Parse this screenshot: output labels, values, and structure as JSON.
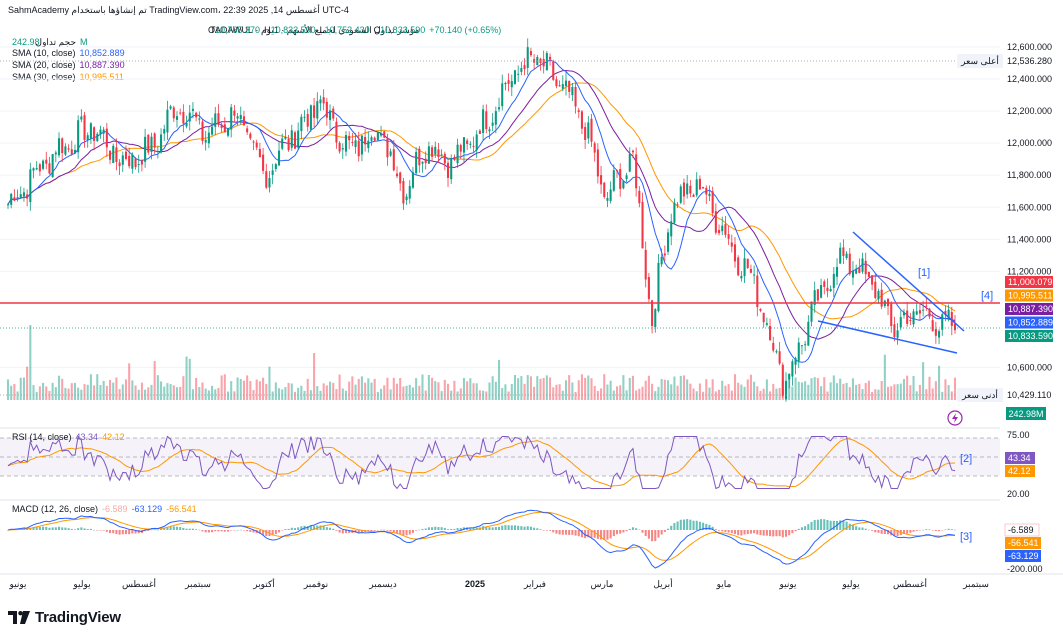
{
  "header": {
    "title_line": "SahmAcademy تم إنشاؤها باستخدام TradingView.com، أغسطس 14, 2025 22:39 UTC-4",
    "symbol_line": "مؤشر تداول السعودي لجميع الأسهم · 1يوم · TADAWUL",
    "ohlc": {
      "o_label": "O",
      "o": "10,765.370",
      "h_label": "H",
      "h": "10,833.590",
      "l_label": "L",
      "l": "10,752.430",
      "c_label": "C",
      "c": "10,833.590",
      "change": "+70.140 (+0.65%)"
    },
    "volume_label": "حجم تداول",
    "volume_value": "242.98M",
    "sma": [
      {
        "label": "SMA (10, close)",
        "value": "10,852.889",
        "color": "#2962ff"
      },
      {
        "label": "SMA (20, close)",
        "value": "10,887.390",
        "color": "#7b1fa2"
      },
      {
        "label": "SMA (30, close)",
        "value": "10,995.511",
        "color": "#ff9800"
      }
    ]
  },
  "price_axis": {
    "ticks": [
      "12,600.000",
      "12,400.000",
      "12,200.000",
      "12,000.000",
      "11,800.000",
      "11,600.000",
      "11,400.000",
      "11,200.000",
      "10,600.000"
    ],
    "high_label": "أعلى سعر",
    "high_value": "12,536.280",
    "low_label": "أدنى سعر",
    "low_value": "10,429.110",
    "badges": [
      {
        "value": "11,000.079",
        "bg": "#f23645"
      },
      {
        "value": "10,995.511",
        "bg": "#ff9800"
      },
      {
        "value": "10,887.390",
        "bg": "#7b1fa2"
      },
      {
        "value": "10,852.889",
        "bg": "#2962ff"
      },
      {
        "value": "10,833.590",
        "bg": "#089981"
      }
    ],
    "volume_badge": "242.98M"
  },
  "annotations": [
    "[1]",
    "[2]",
    "[3]",
    "[4]"
  ],
  "rsi": {
    "label": "RSI (14, close)",
    "value1": "43.34",
    "value2": "42.12",
    "axis": [
      "75.00",
      "20.00"
    ],
    "badge1": "43.34",
    "badge2": "42.12"
  },
  "macd": {
    "label": "MACD (12, 26, close)",
    "macd_value": "-63.129",
    "signal_value": "-56.541",
    "hist_value": "-6.589",
    "axis": "-200.000",
    "badges": [
      "-6.589",
      "-56.541",
      "-63.129"
    ]
  },
  "time_axis": [
    "يونيو",
    "يوليو",
    "أغسطس",
    "سبتمبر",
    "أكتوبر",
    "نوفمبر",
    "ديسمبر",
    "2025",
    "فبراير",
    "مارس",
    "أبريل",
    "مايو",
    "يونيو",
    "يوليو",
    "أغسطس",
    "سبتمبر"
  ],
  "logo_text": "TradingView",
  "colors": {
    "up": "#089981",
    "down": "#f23645",
    "sma10": "#2962ff",
    "sma20": "#7b1fa2",
    "sma30": "#ff9800",
    "resistance": "#f23645",
    "trend": "#2962ff"
  },
  "chart_data": {
    "type": "candlestick",
    "title": "Tadawul All Share Index (TASI), Daily",
    "y_range": [
      10429.11,
      12600
    ],
    "close_path_anchors": [
      [
        0,
        11620
      ],
      [
        0.05,
        11950
      ],
      [
        0.09,
        12100
      ],
      [
        0.12,
        11880
      ],
      [
        0.15,
        11950
      ],
      [
        0.18,
        12250
      ],
      [
        0.21,
        12050
      ],
      [
        0.24,
        12200
      ],
      [
        0.27,
        11800
      ],
      [
        0.3,
        12050
      ],
      [
        0.33,
        12250
      ],
      [
        0.36,
        11950
      ],
      [
        0.39,
        12100
      ],
      [
        0.42,
        11700
      ],
      [
        0.44,
        12000
      ],
      [
        0.47,
        11880
      ],
      [
        0.5,
        12100
      ],
      [
        0.53,
        12400
      ],
      [
        0.555,
        12536
      ],
      [
        0.585,
        12350
      ],
      [
        0.61,
        12100
      ],
      [
        0.63,
        11650
      ],
      [
        0.66,
        11900
      ],
      [
        0.68,
        10900
      ],
      [
        0.7,
        11600
      ],
      [
        0.73,
        11750
      ],
      [
        0.76,
        11400
      ],
      [
        0.79,
        11100
      ],
      [
        0.82,
        10500
      ],
      [
        0.85,
        10950
      ],
      [
        0.88,
        11300
      ],
      [
        0.91,
        11150
      ],
      [
        0.935,
        10850
      ],
      [
        0.96,
        10950
      ],
      [
        1.0,
        10834
      ]
    ],
    "levels": {
      "resistance": 11000.079,
      "close": 10833.59,
      "sma10": 10852.889,
      "sma20": 10887.39,
      "sma30": 10995.511
    }
  }
}
